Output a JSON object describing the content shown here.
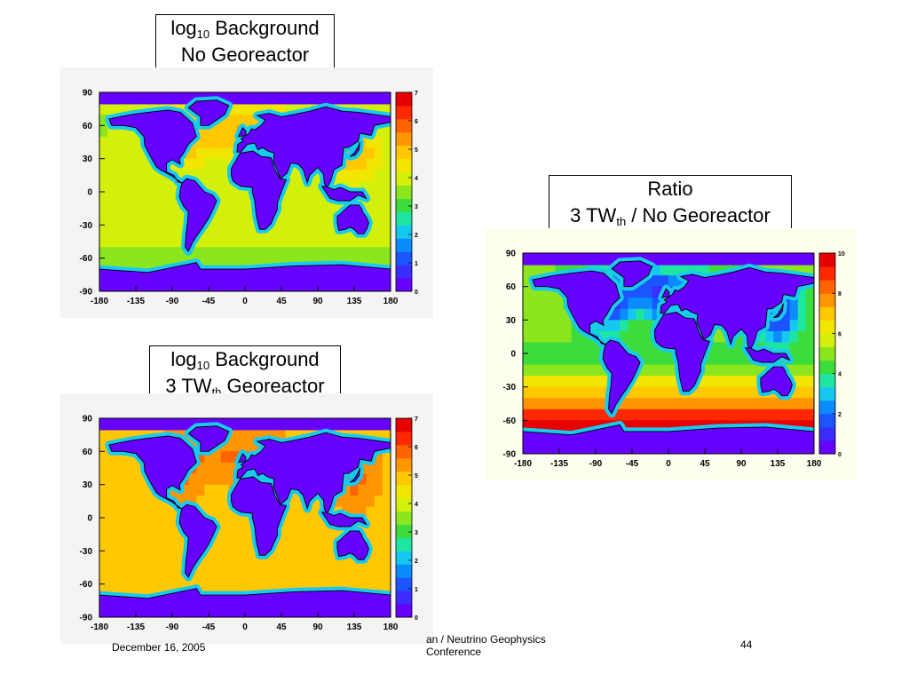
{
  "slide": {
    "footer_date": "December 16, 2005",
    "footer_conf_line1": "an / Neutrino Geophysics",
    "footer_conf_line2": "Conference",
    "page_number": "44"
  },
  "chart_data": [
    {
      "type": "heatmap",
      "title_prefix": "log",
      "title_subscript": "10",
      "title_suffix": " Background",
      "title_line2": "No Georeactor",
      "x_ticks": [
        "-180",
        "-135",
        "-90",
        "-45",
        "0",
        "45",
        "90",
        "135",
        "180"
      ],
      "y_ticks": [
        "90",
        "60",
        "30",
        "0",
        "-30",
        "-60",
        "-90"
      ],
      "xlim": [
        -180,
        180
      ],
      "ylim": [
        -90,
        90
      ],
      "colorbar_ticks": [
        "7",
        "6",
        "5",
        "4",
        "3",
        "2",
        "1",
        "0"
      ],
      "colorbar_range": [
        0,
        7
      ],
      "ocean_level": 4.2,
      "land_level": 0.2,
      "background": "#f4f4f4"
    },
    {
      "type": "heatmap",
      "title_prefix": "log",
      "title_subscript": "10",
      "title_suffix": " Background",
      "title_line2_prefix": "3 TW",
      "title_line2_subscript": "th",
      "title_line2_suffix": " Georeactor",
      "x_ticks": [
        "-180",
        "-135",
        "-90",
        "-45",
        "0",
        "45",
        "90",
        "135",
        "180"
      ],
      "y_ticks": [
        "90",
        "60",
        "30",
        "0",
        "-30",
        "-60",
        "-90"
      ],
      "xlim": [
        -180,
        180
      ],
      "ylim": [
        -90,
        90
      ],
      "colorbar_ticks": [
        "7",
        "6",
        "5",
        "4",
        "3",
        "2",
        "1",
        "0"
      ],
      "colorbar_range": [
        0,
        7
      ],
      "ocean_level": 5.0,
      "land_level": 0.2,
      "background": "#f4f4f4"
    },
    {
      "type": "heatmap",
      "title_line1": "Ratio",
      "title_line2_prefix": "3 TW",
      "title_line2_subscript": "th",
      "title_line2_suffix": " / No Georeactor",
      "x_ticks": [
        "-180",
        "-135",
        "-90",
        "-45",
        "0",
        "45",
        "90",
        "135",
        "180"
      ],
      "y_ticks": [
        "90",
        "60",
        "30",
        "0",
        "-30",
        "-60",
        "-90"
      ],
      "xlim": [
        -180,
        180
      ],
      "ylim": [
        -90,
        90
      ],
      "colorbar_ticks": [
        "10",
        "8",
        "6",
        "4",
        "2",
        "0"
      ],
      "colorbar_range": [
        0,
        10
      ],
      "ocean_level": 5,
      "land_level": 0.5,
      "background": "#fffff0"
    }
  ]
}
